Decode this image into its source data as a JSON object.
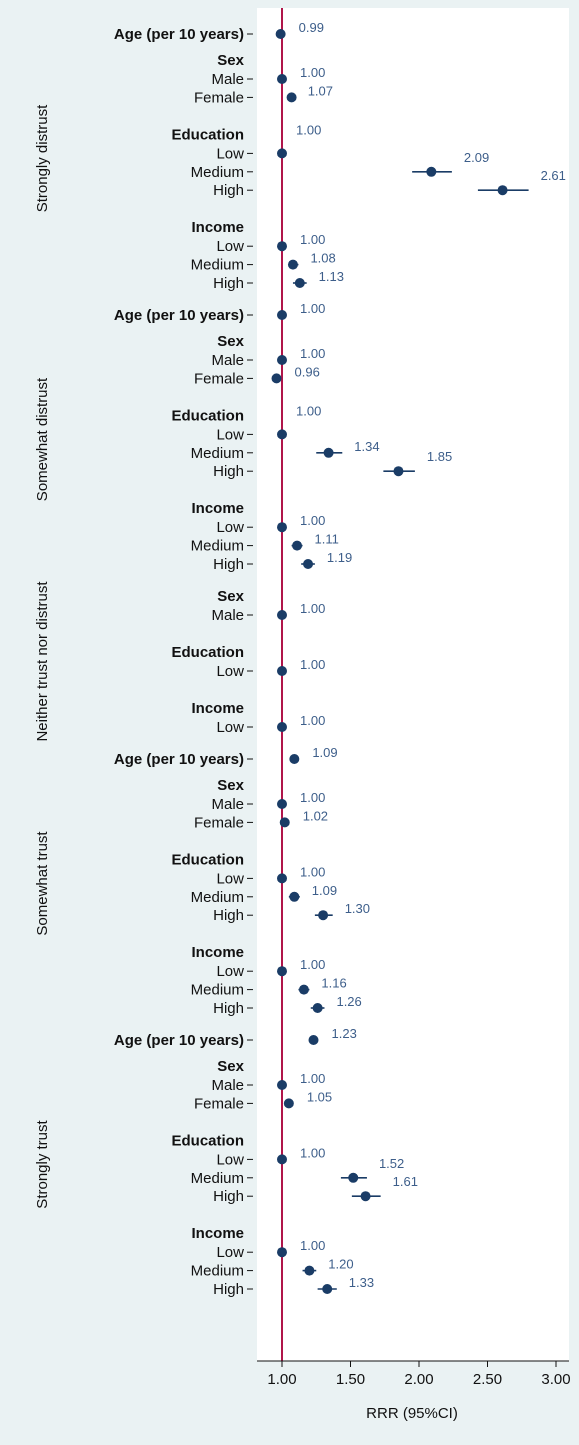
{
  "chart_data": {
    "type": "forest",
    "xlabel": "RRR (95%CI)",
    "xlim": [
      0.9,
      3.05
    ],
    "xticks": [
      1.0,
      1.5,
      2.0,
      2.5,
      3.0
    ],
    "xtick_labels": [
      "1.00",
      "1.50",
      "2.00",
      "2.50",
      "3.00"
    ],
    "reference_line": 1.0,
    "colors": {
      "background": "#eaf2f3",
      "plot_area": "#ffffff",
      "marker": "#1a3c66",
      "reference": "#b0154a",
      "label": "#3d5e8a",
      "text": "#111111"
    },
    "groups": [
      {
        "name": "Strongly distrust",
        "rows": [
          {
            "label": "Age (per 10 years)",
            "kind": "bold",
            "estimate": 0.99,
            "value_label": "0.99"
          },
          {
            "label": "Sex",
            "kind": "header"
          },
          {
            "label": "Male",
            "kind": "level",
            "estimate": 1.0,
            "value_label": "1.00"
          },
          {
            "label": "Female",
            "kind": "level",
            "estimate": 1.07,
            "ci": [
              1.04,
              1.1
            ],
            "value_label": "1.07"
          },
          {
            "label": "Education",
            "kind": "header",
            "value_label": "1.00"
          },
          {
            "label": "Low",
            "kind": "level",
            "estimate": 1.0
          },
          {
            "label": "Medium",
            "kind": "level",
            "estimate": 2.09,
            "ci": [
              1.95,
              2.24
            ],
            "value_label": "2.09"
          },
          {
            "label": "High",
            "kind": "level",
            "estimate": 2.61,
            "ci": [
              2.43,
              2.8
            ],
            "value_label": "2.61"
          },
          {
            "label": "Income",
            "kind": "header"
          },
          {
            "label": "Low",
            "kind": "level",
            "estimate": 1.0,
            "value_label": "1.00"
          },
          {
            "label": "Medium",
            "kind": "level",
            "estimate": 1.08,
            "ci": [
              1.05,
              1.12
            ],
            "value_label": "1.08"
          },
          {
            "label": "High",
            "kind": "level",
            "estimate": 1.13,
            "ci": [
              1.08,
              1.18
            ],
            "value_label": "1.13"
          }
        ]
      },
      {
        "name": "Somewhat distrust",
        "rows": [
          {
            "label": "Age (per 10 years)",
            "kind": "bold",
            "estimate": 1.0,
            "value_label": "1.00"
          },
          {
            "label": "Sex",
            "kind": "header"
          },
          {
            "label": "Male",
            "kind": "level",
            "estimate": 1.0,
            "value_label": "1.00"
          },
          {
            "label": "Female",
            "kind": "level",
            "estimate": 0.96,
            "value_label": "0.96"
          },
          {
            "label": "Education",
            "kind": "header",
            "value_label": "1.00"
          },
          {
            "label": "Low",
            "kind": "level",
            "estimate": 1.0
          },
          {
            "label": "Medium",
            "kind": "level",
            "estimate": 1.34,
            "ci": [
              1.25,
              1.44
            ],
            "value_label": "1.34"
          },
          {
            "label": "High",
            "kind": "level",
            "estimate": 1.85,
            "ci": [
              1.74,
              1.97
            ],
            "value_label": "1.85"
          },
          {
            "label": "Income",
            "kind": "header"
          },
          {
            "label": "Low",
            "kind": "level",
            "estimate": 1.0,
            "value_label": "1.00"
          },
          {
            "label": "Medium",
            "kind": "level",
            "estimate": 1.11,
            "ci": [
              1.07,
              1.15
            ],
            "value_label": "1.11"
          },
          {
            "label": "High",
            "kind": "level",
            "estimate": 1.19,
            "ci": [
              1.14,
              1.24
            ],
            "value_label": "1.19"
          }
        ]
      },
      {
        "name": "Neither trust nor distrust",
        "rows": [
          {
            "label": "Sex",
            "kind": "header"
          },
          {
            "label": "Male",
            "kind": "level",
            "estimate": 1.0,
            "value_label": "1.00"
          },
          {
            "label": "Education",
            "kind": "header"
          },
          {
            "label": "Low",
            "kind": "level",
            "estimate": 1.0,
            "value_label": "1.00"
          },
          {
            "label": "Income",
            "kind": "header"
          },
          {
            "label": "Low",
            "kind": "level",
            "estimate": 1.0,
            "value_label": "1.00"
          }
        ]
      },
      {
        "name": "Somewhat trust",
        "rows": [
          {
            "label": "Age (per 10 years)",
            "kind": "bold",
            "estimate": 1.09,
            "value_label": "1.09"
          },
          {
            "label": "Sex",
            "kind": "header"
          },
          {
            "label": "Male",
            "kind": "level",
            "estimate": 1.0,
            "value_label": "1.00"
          },
          {
            "label": "Female",
            "kind": "level",
            "estimate": 1.02,
            "value_label": "1.02"
          },
          {
            "label": "Education",
            "kind": "header"
          },
          {
            "label": "Low",
            "kind": "level",
            "estimate": 1.0,
            "value_label": "1.00"
          },
          {
            "label": "Medium",
            "kind": "level",
            "estimate": 1.09,
            "ci": [
              1.05,
              1.13
            ],
            "value_label": "1.09"
          },
          {
            "label": "High",
            "kind": "level",
            "estimate": 1.3,
            "ci": [
              1.24,
              1.37
            ],
            "value_label": "1.30"
          },
          {
            "label": "Income",
            "kind": "header"
          },
          {
            "label": "Low",
            "kind": "level",
            "estimate": 1.0,
            "value_label": "1.00"
          },
          {
            "label": "Medium",
            "kind": "level",
            "estimate": 1.16,
            "ci": [
              1.12,
              1.2
            ],
            "value_label": "1.16"
          },
          {
            "label": "High",
            "kind": "level",
            "estimate": 1.26,
            "ci": [
              1.21,
              1.31
            ],
            "value_label": "1.26"
          }
        ]
      },
      {
        "name": "Strongly trust",
        "rows": [
          {
            "label": "Age (per 10 years)",
            "kind": "bold",
            "estimate": 1.23,
            "value_label": "1.23"
          },
          {
            "label": "Sex",
            "kind": "header"
          },
          {
            "label": "Male",
            "kind": "level",
            "estimate": 1.0,
            "value_label": "1.00"
          },
          {
            "label": "Female",
            "kind": "level",
            "estimate": 1.05,
            "value_label": "1.05"
          },
          {
            "label": "Education",
            "kind": "header"
          },
          {
            "label": "Low",
            "kind": "level",
            "estimate": 1.0,
            "value_label": "1.00"
          },
          {
            "label": "Medium",
            "kind": "level",
            "estimate": 1.52,
            "ci": [
              1.43,
              1.62
            ],
            "value_label": "1.52"
          },
          {
            "label": "High",
            "kind": "level",
            "estimate": 1.61,
            "ci": [
              1.51,
              1.72
            ],
            "value_label": "1.61"
          },
          {
            "label": "Income",
            "kind": "header"
          },
          {
            "label": "Low",
            "kind": "level",
            "estimate": 1.0,
            "value_label": "1.00"
          },
          {
            "label": "Medium",
            "kind": "level",
            "estimate": 1.2,
            "ci": [
              1.15,
              1.25
            ],
            "value_label": "1.20"
          },
          {
            "label": "High",
            "kind": "level",
            "estimate": 1.33,
            "ci": [
              1.26,
              1.4
            ],
            "value_label": "1.33"
          }
        ]
      }
    ]
  }
}
